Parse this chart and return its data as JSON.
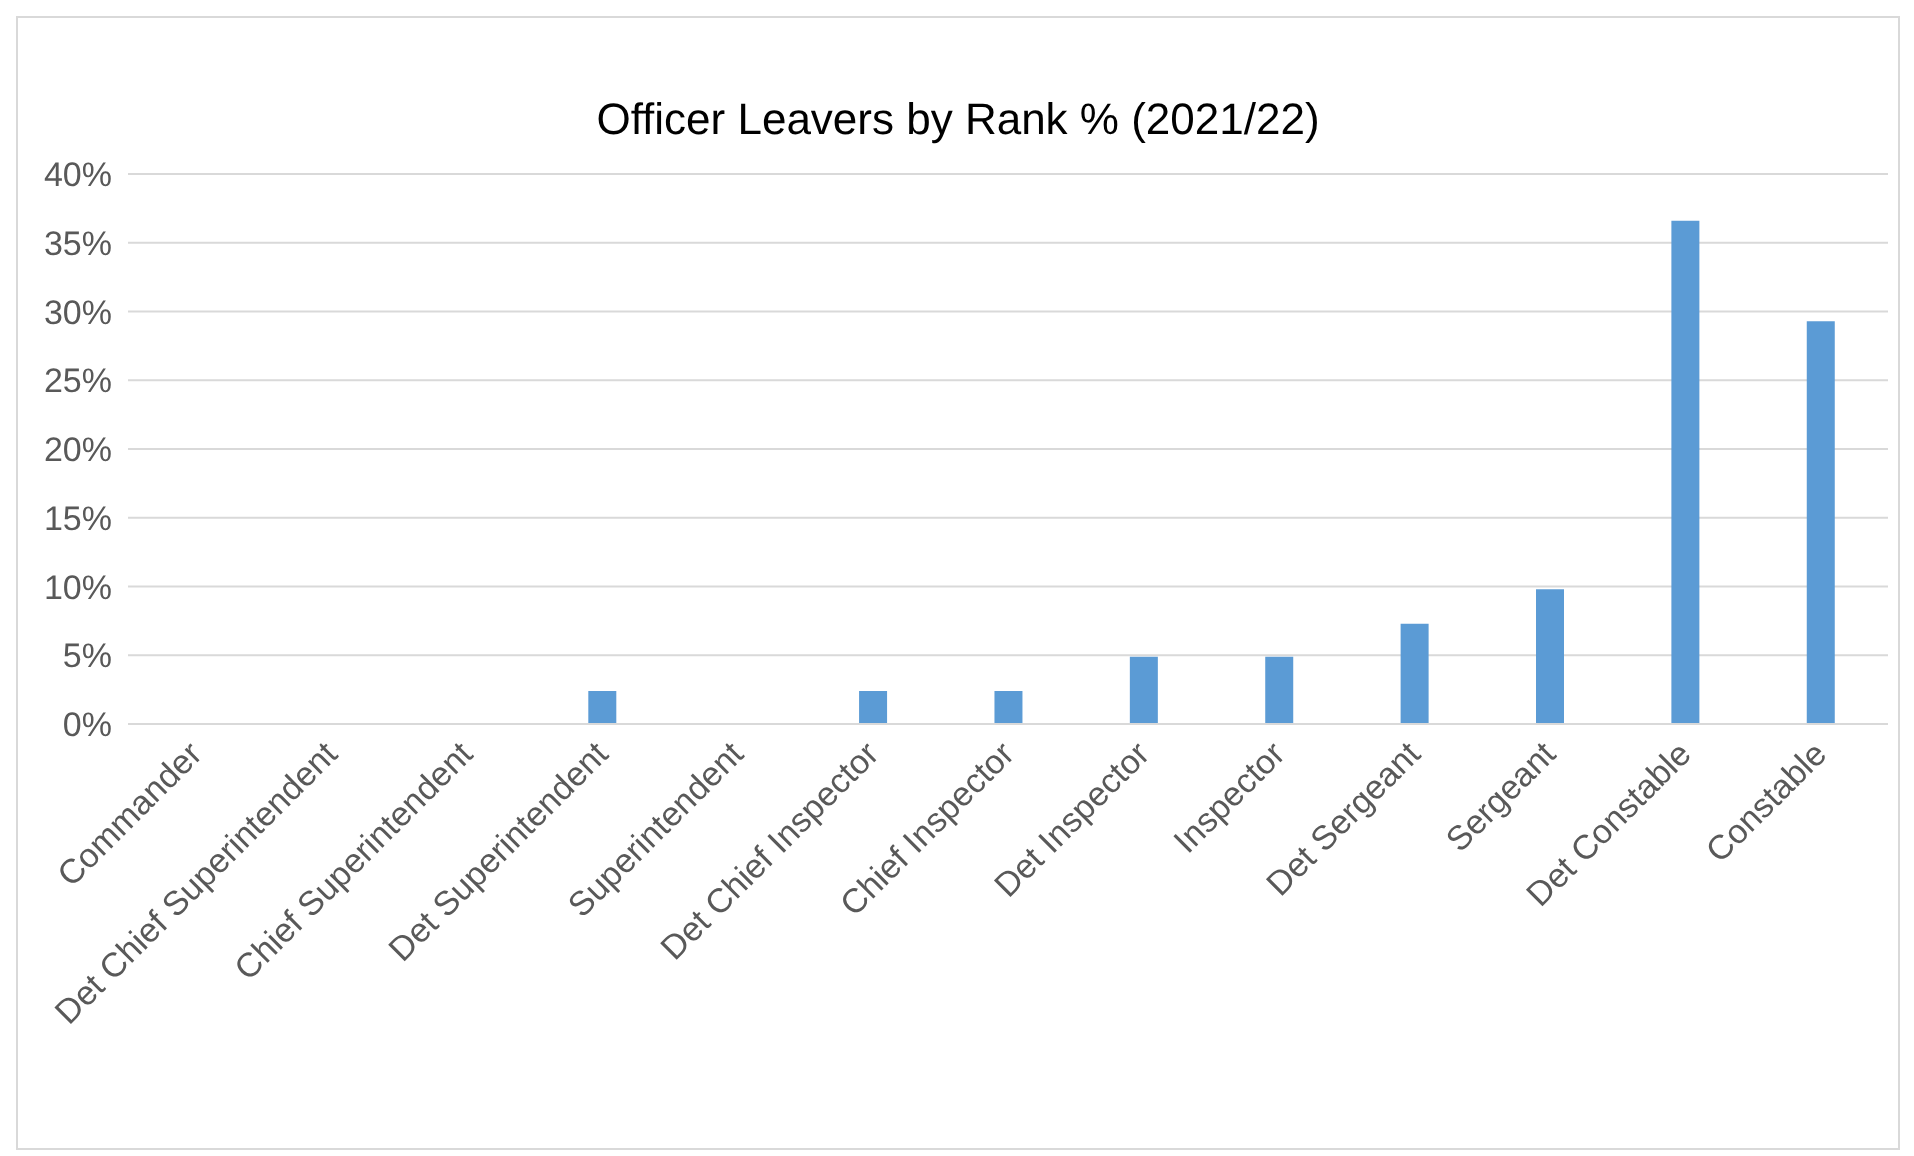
{
  "chart_data": {
    "type": "bar",
    "title": "Officer Leavers by Rank % (2021/22)",
    "categories": [
      "Commander",
      "Det Chief Superintendent",
      "Chief Superintendent",
      "Det Superintendent",
      "Superintendent",
      "Det Chief Inspector",
      "Chief Inspector",
      "Det Inspector",
      "Inspector",
      "Det Sergeant",
      "Sergeant",
      "Det Constable",
      "Constable"
    ],
    "values": [
      0,
      0,
      0,
      2.4,
      0,
      2.4,
      2.4,
      4.9,
      4.9,
      7.3,
      9.8,
      36.6,
      29.3
    ],
    "color": "#5b9bd5",
    "ylim": [
      0,
      40
    ],
    "yticks": [
      {
        "value": 0,
        "label": "0%"
      },
      {
        "value": 5,
        "label": "5%"
      },
      {
        "value": 10,
        "label": "10%"
      },
      {
        "value": 15,
        "label": "15%"
      },
      {
        "value": 20,
        "label": "20%"
      },
      {
        "value": 25,
        "label": "25%"
      },
      {
        "value": 30,
        "label": "30%"
      },
      {
        "value": 35,
        "label": "35%"
      },
      {
        "value": 40,
        "label": "40%"
      }
    ],
    "grid": "y",
    "legend": false
  }
}
